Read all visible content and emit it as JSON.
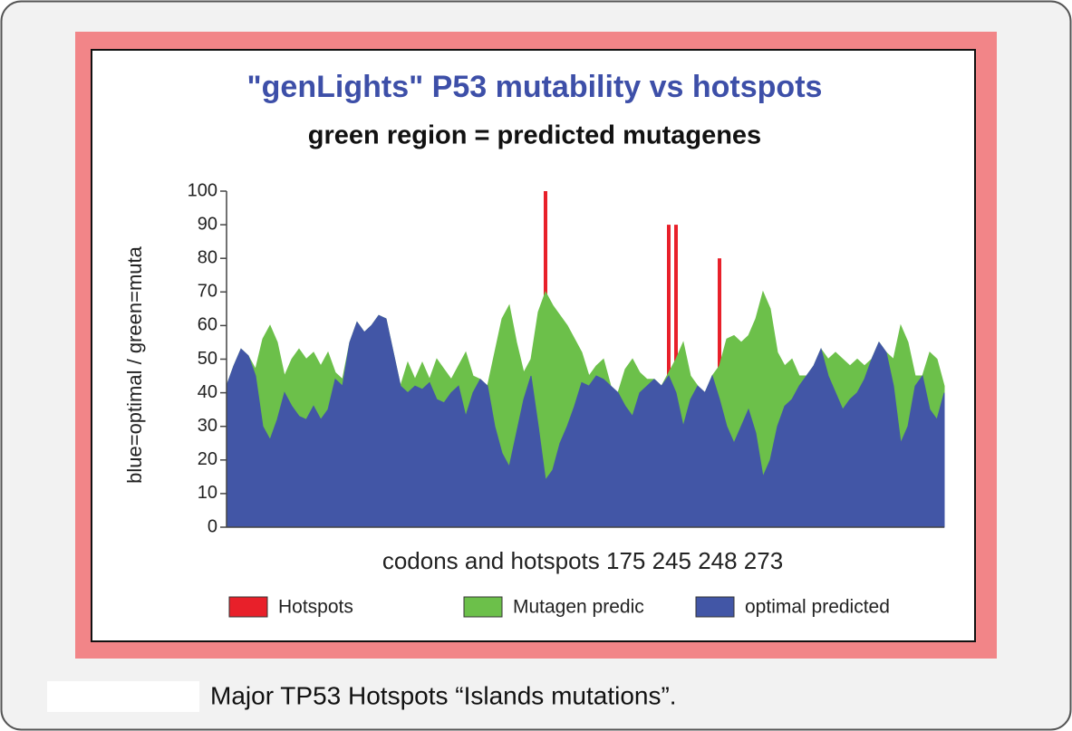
{
  "chart_data": {
    "type": "area",
    "title": "\"genLights\" P53 mutability vs hotspots",
    "subtitle": "green region = predicted mutagenes",
    "y_label": "blue=optimal / green=muta",
    "x_label": "codons and hotspots 175 245 248 273",
    "caption": "Major TP53 Hotspots “Islands mutations”.",
    "categories": [
      null,
      null,
      null,
      null,
      null,
      null,
      null,
      null,
      null,
      null,
      null,
      null,
      null,
      null,
      null,
      null,
      null,
      null,
      null,
      null,
      null,
      null,
      null,
      null,
      null,
      null,
      null,
      null,
      null,
      null,
      null,
      null,
      null,
      null,
      null,
      null,
      null,
      null,
      null,
      null,
      null,
      null,
      null,
      null,
      null,
      null,
      null,
      null,
      null,
      null,
      null,
      null,
      null,
      null,
      null,
      null,
      null,
      null,
      null,
      null,
      null,
      null,
      null,
      null,
      null,
      null,
      null,
      null,
      null,
      null,
      null,
      null,
      null,
      null,
      null,
      null,
      null,
      null,
      null,
      null,
      null,
      null,
      null,
      null,
      null,
      null,
      null,
      null,
      null,
      null,
      null,
      null,
      null,
      null,
      null,
      null,
      null,
      null,
      null,
      null
    ],
    "ylim": [
      0,
      100
    ],
    "yticks": [
      0,
      10,
      20,
      30,
      40,
      50,
      60,
      70,
      80,
      90,
      100
    ],
    "legend": "bottom",
    "series": [
      {
        "name": "Hotspots",
        "type": "bar",
        "color": "#e8202a",
        "values": [
          null,
          null,
          null,
          null,
          null,
          null,
          null,
          null,
          null,
          null,
          null,
          null,
          null,
          null,
          null,
          null,
          null,
          null,
          null,
          null,
          null,
          null,
          null,
          null,
          null,
          null,
          null,
          null,
          null,
          null,
          null,
          null,
          null,
          null,
          null,
          null,
          null,
          null,
          null,
          null,
          null,
          null,
          null,
          null,
          100,
          null,
          null,
          null,
          null,
          null,
          null,
          null,
          null,
          null,
          null,
          null,
          null,
          null,
          null,
          null,
          null,
          90,
          90,
          null,
          null,
          null,
          null,
          null,
          80,
          null,
          null,
          null,
          null,
          null,
          null,
          null,
          null,
          null,
          null,
          null,
          null,
          null,
          null,
          null,
          null,
          null,
          null,
          null,
          null,
          null,
          null,
          null,
          null,
          null,
          null,
          null,
          null,
          null,
          null,
          null
        ]
      },
      {
        "name": "Mutagen predic",
        "type": "area",
        "color": "#6cc04a",
        "values": [
          42,
          48,
          53,
          51,
          47,
          56,
          60,
          55,
          45,
          50,
          53,
          50,
          52,
          48,
          52,
          46,
          44,
          55,
          61,
          58,
          60,
          63,
          62,
          52,
          42,
          49,
          44,
          49,
          44,
          50,
          47,
          44,
          48,
          52,
          45,
          44,
          42,
          52,
          62,
          66,
          55,
          46,
          50,
          64,
          70,
          66,
          63,
          60,
          56,
          52,
          45,
          48,
          50,
          42,
          40,
          47,
          50,
          46,
          44,
          44,
          42,
          46,
          50,
          55,
          45,
          42,
          40,
          45,
          48,
          56,
          57,
          55,
          57,
          62,
          70,
          65,
          52,
          48,
          50,
          45,
          45,
          48,
          53,
          50,
          52,
          50,
          48,
          50,
          48,
          50,
          55,
          52,
          50,
          60,
          55,
          45,
          45,
          52,
          50,
          42
        ]
      },
      {
        "name": "optimal predicted",
        "type": "area",
        "color": "#4256a6",
        "values": [
          42,
          48,
          53,
          51,
          45,
          30,
          26,
          32,
          40,
          36,
          33,
          32,
          36,
          32,
          35,
          44,
          42,
          55,
          61,
          58,
          60,
          63,
          62,
          52,
          42,
          40,
          42,
          41,
          43,
          38,
          37,
          40,
          42,
          33,
          40,
          44,
          42,
          30,
          22,
          18,
          28,
          38,
          45,
          30,
          14,
          17,
          25,
          30,
          36,
          43,
          42,
          45,
          44,
          42,
          40,
          36,
          33,
          40,
          42,
          44,
          42,
          45,
          40,
          30,
          38,
          42,
          40,
          45,
          38,
          30,
          25,
          30,
          35,
          28,
          15,
          20,
          30,
          36,
          38,
          42,
          45,
          48,
          53,
          45,
          40,
          35,
          38,
          40,
          44,
          50,
          55,
          52,
          42,
          25,
          30,
          42,
          45,
          35,
          32,
          40
        ]
      }
    ]
  }
}
